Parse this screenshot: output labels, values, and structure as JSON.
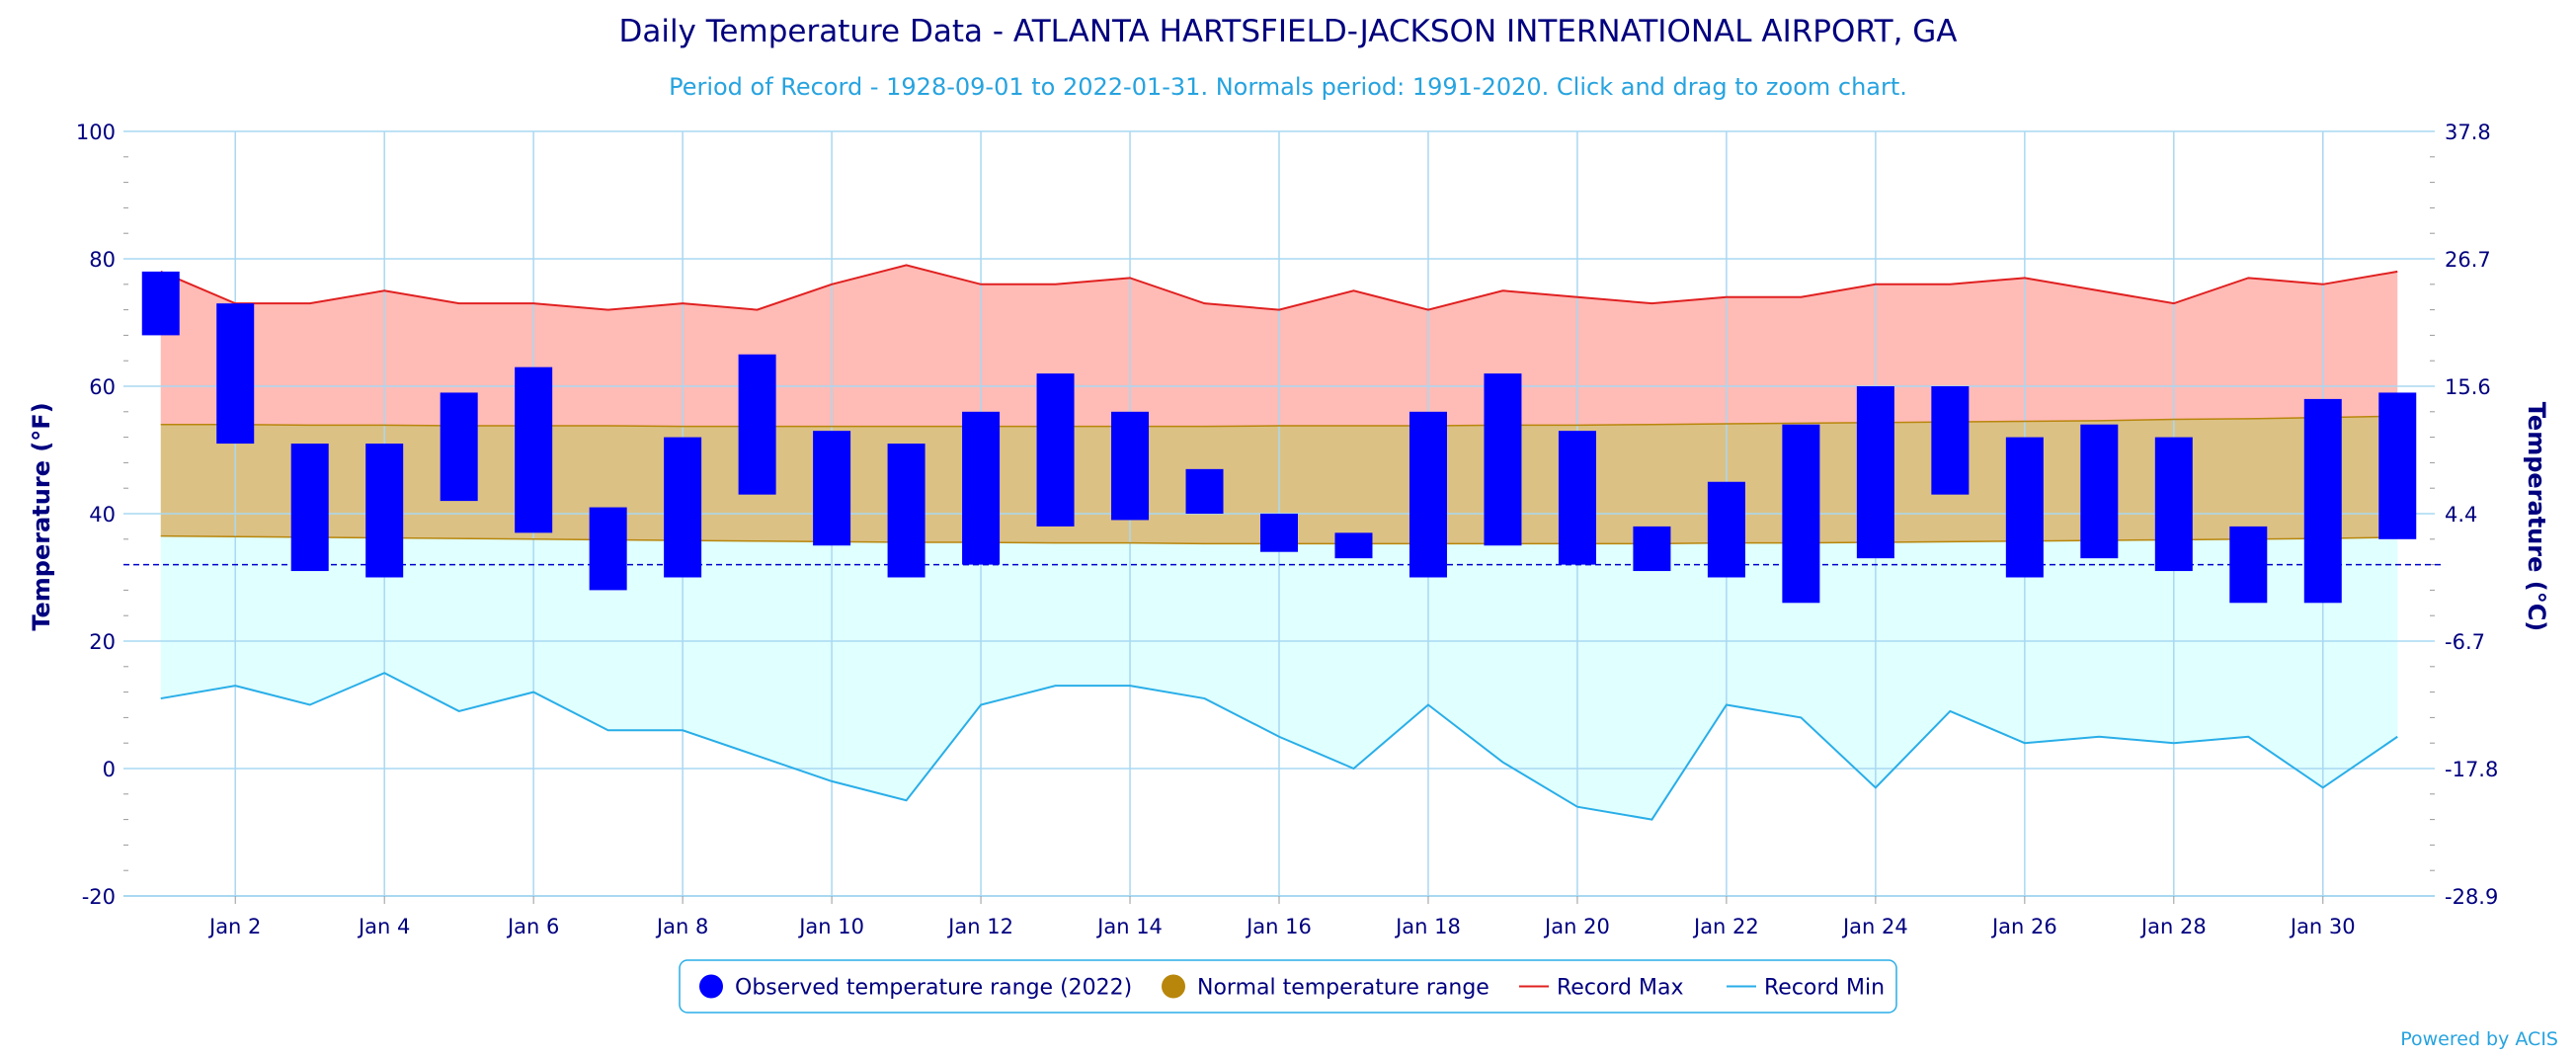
{
  "colors": {
    "title": "#00007f",
    "subtitle": "#27a3df",
    "observed": "#0000ff",
    "normal_fill": "#dcc185",
    "normal_line": "#b8860b",
    "record_max_fill": "#ffbbb6",
    "record_max_line": "#e02020",
    "record_min_fill": "#e0ffff",
    "record_min_line": "#29aee8",
    "grid": "#a9d8f2",
    "freeze_line": "#0000cc"
  },
  "chart_data": {
    "type": "bar",
    "title": "Daily Temperature Data - ATLANTA HARTSFIELD-JACKSON INTERNATIONAL AIRPORT, GA",
    "subtitle": "Period of Record - 1928-09-01 to 2022-01-31. Normals period: 1991-2020. Click and drag to zoom chart.",
    "ylabel": "Temperature (°F)",
    "y2label": "Temperature (°C)",
    "ylim": [
      -20,
      100
    ],
    "xlim": [
      0.5,
      31.5
    ],
    "yticks": [
      "-20",
      "0",
      "20",
      "40",
      "60",
      "80",
      "100"
    ],
    "y2ticks": [
      "-28.9",
      "-17.8",
      "-6.7",
      "4.4",
      "15.6",
      "26.7",
      "37.8"
    ],
    "xticks": [
      {
        "day": 2,
        "label": "Jan 2"
      },
      {
        "day": 4,
        "label": "Jan 4"
      },
      {
        "day": 6,
        "label": "Jan 6"
      },
      {
        "day": 8,
        "label": "Jan 8"
      },
      {
        "day": 10,
        "label": "Jan 10"
      },
      {
        "day": 12,
        "label": "Jan 12"
      },
      {
        "day": 14,
        "label": "Jan 14"
      },
      {
        "day": 16,
        "label": "Jan 16"
      },
      {
        "day": 18,
        "label": "Jan 18"
      },
      {
        "day": 20,
        "label": "Jan 20"
      },
      {
        "day": 22,
        "label": "Jan 22"
      },
      {
        "day": 24,
        "label": "Jan 24"
      },
      {
        "day": 26,
        "label": "Jan 26"
      },
      {
        "day": 28,
        "label": "Jan 28"
      },
      {
        "day": 30,
        "label": "Jan 30"
      }
    ],
    "freezing_line": 32,
    "grid": true,
    "legend_position": "bottom-center",
    "days": [
      1,
      2,
      3,
      4,
      5,
      6,
      7,
      8,
      9,
      10,
      11,
      12,
      13,
      14,
      15,
      16,
      17,
      18,
      19,
      20,
      21,
      22,
      23,
      24,
      25,
      26,
      27,
      28,
      29,
      30,
      31
    ],
    "series": [
      {
        "name": "Observed temperature range (2022)",
        "type": "range-bar",
        "low": [
          68,
          51,
          31,
          30,
          42,
          37,
          28,
          30,
          43,
          35,
          30,
          32,
          38,
          39,
          40,
          34,
          33,
          30,
          35,
          32,
          31,
          30,
          26,
          33,
          43,
          30,
          33,
          31,
          26,
          26,
          36
        ],
        "high": [
          78,
          73,
          51,
          51,
          59,
          63,
          41,
          52,
          65,
          53,
          51,
          56,
          62,
          56,
          47,
          40,
          37,
          56,
          62,
          53,
          38,
          45,
          54,
          60,
          60,
          52,
          54,
          52,
          38,
          58,
          59
        ]
      },
      {
        "name": "Normal temperature range",
        "type": "area-range",
        "low": [
          36.5,
          36.4,
          36.3,
          36.2,
          36.1,
          36.0,
          35.9,
          35.8,
          35.7,
          35.6,
          35.5,
          35.5,
          35.4,
          35.4,
          35.3,
          35.3,
          35.3,
          35.3,
          35.3,
          35.3,
          35.3,
          35.4,
          35.4,
          35.5,
          35.6,
          35.7,
          35.8,
          35.9,
          36.0,
          36.1,
          36.3
        ],
        "high": [
          54.0,
          54.0,
          53.9,
          53.9,
          53.8,
          53.8,
          53.8,
          53.7,
          53.7,
          53.7,
          53.7,
          53.7,
          53.7,
          53.7,
          53.7,
          53.8,
          53.8,
          53.8,
          53.9,
          53.9,
          54.0,
          54.1,
          54.2,
          54.3,
          54.4,
          54.5,
          54.6,
          54.8,
          54.9,
          55.1,
          55.3
        ]
      },
      {
        "name": "Record Max",
        "type": "line",
        "values": [
          78,
          73,
          73,
          75,
          73,
          73,
          72,
          73,
          72,
          76,
          79,
          76,
          76,
          77,
          73,
          72,
          75,
          72,
          75,
          74,
          73,
          74,
          74,
          76,
          76,
          77,
          75,
          73,
          77,
          76,
          78
        ]
      },
      {
        "name": "Record Min",
        "type": "line",
        "values": [
          11,
          13,
          10,
          15,
          9,
          12,
          6,
          6,
          2,
          -2,
          -5,
          10,
          13,
          13,
          11,
          5,
          0,
          10,
          1,
          -6,
          -8,
          10,
          8,
          -3,
          9,
          4,
          5,
          4,
          5,
          -3,
          5
        ]
      }
    ],
    "credit": "Powered by ACIS"
  }
}
